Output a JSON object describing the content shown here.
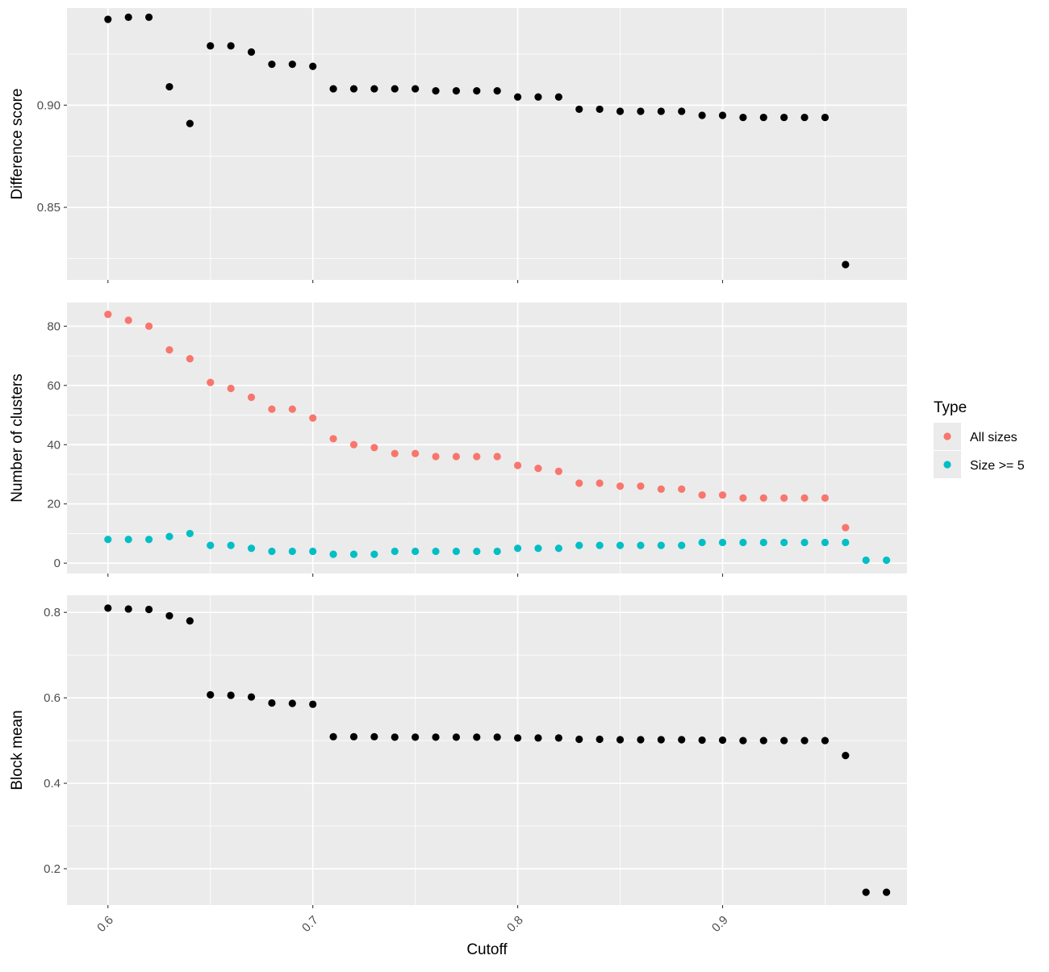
{
  "chart_data": [
    {
      "type": "scatter",
      "ylabel": "Difference score",
      "xlim": [
        0.58,
        0.99
      ],
      "ylim": [
        0.8145,
        0.9475
      ],
      "yticks": [
        0.85,
        0.9
      ],
      "ytick_labels": [
        "0.85",
        "0.90"
      ],
      "series": [
        {
          "color": "#000000",
          "x": [
            0.6,
            0.61,
            0.62,
            0.63,
            0.64,
            0.65,
            0.66,
            0.67,
            0.68,
            0.69,
            0.7,
            0.71,
            0.72,
            0.73,
            0.74,
            0.75,
            0.76,
            0.77,
            0.78,
            0.79,
            0.8,
            0.81,
            0.82,
            0.83,
            0.84,
            0.85,
            0.86,
            0.87,
            0.88,
            0.89,
            0.9,
            0.91,
            0.92,
            0.93,
            0.94,
            0.95,
            0.96
          ],
          "y": [
            0.942,
            0.943,
            0.943,
            0.909,
            0.891,
            0.929,
            0.929,
            0.926,
            0.92,
            0.92,
            0.919,
            0.908,
            0.908,
            0.908,
            0.908,
            0.908,
            0.907,
            0.907,
            0.907,
            0.907,
            0.904,
            0.904,
            0.904,
            0.898,
            0.898,
            0.897,
            0.897,
            0.897,
            0.897,
            0.895,
            0.895,
            0.894,
            0.894,
            0.894,
            0.894,
            0.894,
            0.822
          ]
        }
      ]
    },
    {
      "type": "scatter",
      "ylabel": "Number of clusters",
      "xlim": [
        0.58,
        0.99
      ],
      "ylim": [
        -3.5,
        88
      ],
      "yticks": [
        0,
        20,
        40,
        60,
        80
      ],
      "ytick_labels": [
        "0",
        "20",
        "40",
        "60",
        "80"
      ],
      "legend": {
        "title": "Type",
        "position": "right",
        "entries": [
          {
            "label": "All sizes",
            "color": "#F8766D"
          },
          {
            "label": "Size >= 5",
            "color": "#00BFC4"
          }
        ]
      },
      "series": [
        {
          "name": "All sizes",
          "color": "#F8766D",
          "x": [
            0.6,
            0.61,
            0.62,
            0.63,
            0.64,
            0.65,
            0.66,
            0.67,
            0.68,
            0.69,
            0.7,
            0.71,
            0.72,
            0.73,
            0.74,
            0.75,
            0.76,
            0.77,
            0.78,
            0.79,
            0.8,
            0.81,
            0.82,
            0.83,
            0.84,
            0.85,
            0.86,
            0.87,
            0.88,
            0.89,
            0.9,
            0.91,
            0.92,
            0.93,
            0.94,
            0.95,
            0.96
          ],
          "y": [
            84,
            82,
            80,
            72,
            69,
            61,
            59,
            56,
            52,
            52,
            49,
            42,
            40,
            39,
            37,
            37,
            36,
            36,
            36,
            36,
            33,
            32,
            31,
            27,
            27,
            26,
            26,
            25,
            25,
            23,
            23,
            22,
            22,
            22,
            22,
            22,
            12
          ]
        },
        {
          "name": "Size >= 5",
          "color": "#00BFC4",
          "x": [
            0.6,
            0.61,
            0.62,
            0.63,
            0.64,
            0.65,
            0.66,
            0.67,
            0.68,
            0.69,
            0.7,
            0.71,
            0.72,
            0.73,
            0.74,
            0.75,
            0.76,
            0.77,
            0.78,
            0.79,
            0.8,
            0.81,
            0.82,
            0.83,
            0.84,
            0.85,
            0.86,
            0.87,
            0.88,
            0.89,
            0.9,
            0.91,
            0.92,
            0.93,
            0.94,
            0.95,
            0.96,
            0.97,
            0.98
          ],
          "y": [
            8,
            8,
            8,
            9,
            10,
            6,
            6,
            5,
            4,
            4,
            4,
            3,
            3,
            3,
            4,
            4,
            4,
            4,
            4,
            4,
            5,
            5,
            5,
            6,
            6,
            6,
            6,
            6,
            6,
            7,
            7,
            7,
            7,
            7,
            7,
            7,
            7,
            1,
            1
          ]
        }
      ]
    },
    {
      "type": "scatter",
      "ylabel": "Block mean",
      "xlabel": "Cutoff",
      "xlim": [
        0.58,
        0.99
      ],
      "ylim": [
        0.115,
        0.84
      ],
      "yticks": [
        0.2,
        0.4,
        0.6,
        0.8
      ],
      "ytick_labels": [
        "0.2",
        "0.4",
        "0.6",
        "0.8"
      ],
      "xticks": [
        0.6,
        0.7,
        0.8,
        0.9
      ],
      "xtick_labels": [
        "0.6",
        "0.7",
        "0.8",
        "0.9"
      ],
      "series": [
        {
          "color": "#000000",
          "x": [
            0.6,
            0.61,
            0.62,
            0.63,
            0.64,
            0.65,
            0.66,
            0.67,
            0.68,
            0.69,
            0.7,
            0.71,
            0.72,
            0.73,
            0.74,
            0.75,
            0.76,
            0.77,
            0.78,
            0.79,
            0.8,
            0.81,
            0.82,
            0.83,
            0.84,
            0.85,
            0.86,
            0.87,
            0.88,
            0.89,
            0.9,
            0.91,
            0.92,
            0.93,
            0.94,
            0.95,
            0.96,
            0.97,
            0.98
          ],
          "y": [
            0.81,
            0.808,
            0.807,
            0.792,
            0.78,
            0.607,
            0.606,
            0.602,
            0.588,
            0.587,
            0.585,
            0.509,
            0.509,
            0.509,
            0.508,
            0.508,
            0.508,
            0.508,
            0.508,
            0.508,
            0.506,
            0.506,
            0.506,
            0.503,
            0.503,
            0.502,
            0.502,
            0.502,
            0.502,
            0.501,
            0.501,
            0.5,
            0.5,
            0.5,
            0.5,
            0.5,
            0.465,
            0.145,
            0.145
          ]
        }
      ]
    }
  ]
}
